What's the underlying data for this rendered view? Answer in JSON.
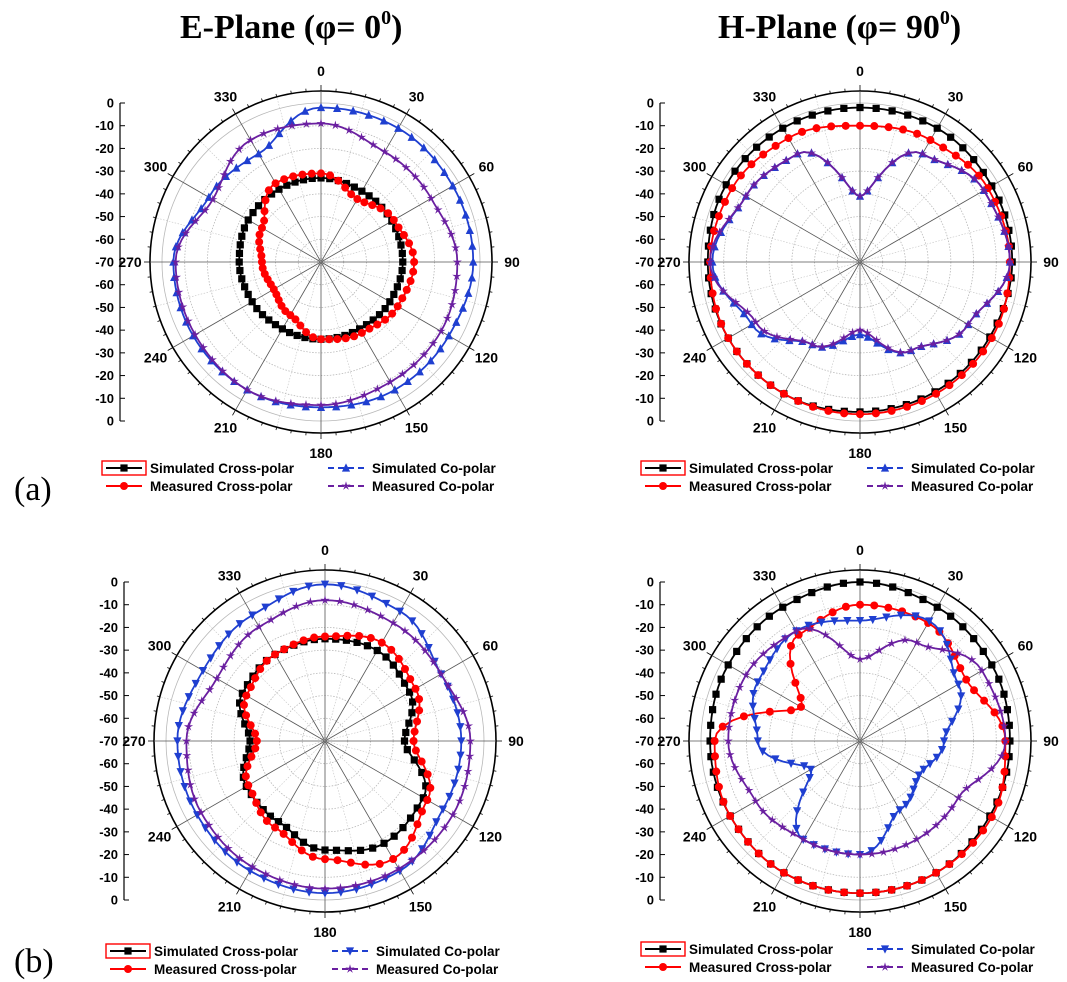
{
  "titles": {
    "e_plane": "E-Plane (φ= 0",
    "e_plane_sup": "0",
    "h_plane": "H-Plane (φ= 90",
    "h_plane_sup": "0",
    "paren": ")"
  },
  "panel_labels": {
    "a": "(a)",
    "b": "(b)"
  },
  "radial_ticks": [
    "0",
    "-10",
    "-20",
    "-30",
    "-40",
    "-50",
    "-60",
    "-70",
    "-60",
    "-50",
    "-40",
    "-30",
    "-20",
    "-10",
    "0"
  ],
  "angle_labels": [
    "0",
    "30",
    "60",
    "90",
    "120",
    "150",
    "180",
    "210",
    "240",
    "270",
    "300",
    "330"
  ],
  "legend": {
    "sim_cross": "Simulated Cross-polar",
    "meas_cross": "Measured Cross-polar",
    "sim_co": "Simulated Co-polar",
    "meas_co": "Measured Co-polar"
  },
  "colors": {
    "sim_cross": "#000000",
    "meas_cross": "#ff0000",
    "sim_co": "#1f3fd0",
    "meas_co": "#6a1fa0",
    "legend_box_border": "#ff0000"
  },
  "chart_data": [
    {
      "type": "polar",
      "panel": "(a) E-Plane",
      "r_unit": "dB",
      "rlim": [
        -70,
        0
      ],
      "angles_deg": [
        0,
        30,
        60,
        90,
        120,
        150,
        180,
        210,
        240,
        270,
        300,
        330
      ],
      "series": [
        {
          "name": "Simulated Cross-polar",
          "marker": "square",
          "values": [
            -33,
            -34,
            -34,
            -34,
            -35,
            -36,
            -36,
            -36,
            -35,
            -34,
            -33,
            -33
          ]
        },
        {
          "name": "Measured Cross-polar",
          "marker": "circle",
          "values": [
            -31,
            -38,
            -33,
            -29,
            -31,
            -34,
            -36,
            -43,
            -46,
            -44,
            -40,
            -30
          ]
        },
        {
          "name": "Simulated Co-polar",
          "marker": "triangle-up",
          "values": [
            -2,
            -2,
            -3,
            -3,
            -5,
            -5,
            -6,
            -5,
            -5,
            -5,
            -13,
            -15
          ]
        },
        {
          "name": "Measured Co-polar",
          "marker": "star",
          "values": [
            -9,
            -14,
            -14,
            -10,
            -9,
            -9,
            -7,
            -5,
            -6,
            -6,
            -15,
            -8
          ]
        }
      ]
    },
    {
      "type": "polar",
      "panel": "(a) H-Plane",
      "r_unit": "dB",
      "rlim": [
        -70,
        0
      ],
      "angles_deg": [
        0,
        30,
        60,
        90,
        120,
        150,
        180,
        210,
        240,
        270,
        300,
        330
      ],
      "series": [
        {
          "name": "Simulated Cross-polar",
          "marker": "square",
          "values": [
            -2,
            -2,
            -3,
            -3,
            -4,
            -4,
            -4,
            -3,
            -3,
            -3,
            -2,
            -2
          ]
        },
        {
          "name": "Measured Cross-polar",
          "marker": "circle",
          "values": [
            -10,
            -8,
            -5,
            -4,
            -3,
            -3,
            -3,
            -3,
            -3,
            -4,
            -5,
            -7
          ]
        },
        {
          "name": "Simulated Co-polar",
          "marker": "triangle-up",
          "values": [
            -41,
            -15,
            -7,
            -4,
            -15,
            -25,
            -38,
            -28,
            -15,
            -5,
            -12,
            -15
          ]
        },
        {
          "name": "Measured Co-polar",
          "marker": "star",
          "values": [
            -41,
            -15,
            -7,
            -4,
            -15,
            -25,
            -40,
            -28,
            -17,
            -4,
            -12,
            -15
          ]
        }
      ]
    },
    {
      "type": "polar",
      "panel": "(b) E-Plane",
      "r_unit": "dB",
      "rlim": [
        -70,
        0
      ],
      "angles_deg": [
        0,
        30,
        60,
        90,
        120,
        150,
        180,
        210,
        240,
        270,
        300,
        330
      ],
      "series": [
        {
          "name": "Simulated Cross-polar",
          "marker": "square",
          "values": [
            -25,
            -24,
            -27,
            -35,
            -20,
            -18,
            -22,
            -29,
            -30,
            -37,
            -28,
            -26
          ]
        },
        {
          "name": "Measured Cross-polar",
          "marker": "circle",
          "values": [
            -24,
            -20,
            -24,
            -31,
            -18,
            -10,
            -18,
            -26,
            -31,
            -40,
            -30,
            -26
          ]
        },
        {
          "name": "Simulated Co-polar",
          "marker": "triangle-down",
          "values": [
            -1,
            -4,
            -11,
            -10,
            -10,
            -4,
            -3,
            -4,
            -5,
            -5,
            -8,
            -6
          ]
        },
        {
          "name": "Measured Co-polar",
          "marker": "star",
          "values": [
            -8,
            -10,
            -11,
            -6,
            -5,
            -5,
            -5,
            -6,
            -7,
            -9,
            -15,
            -12
          ]
        }
      ]
    },
    {
      "type": "polar",
      "panel": "(b) H-Plane",
      "r_unit": "dB",
      "rlim": [
        -70,
        0
      ],
      "angles_deg": [
        0,
        30,
        60,
        90,
        120,
        150,
        180,
        210,
        240,
        270,
        300,
        330
      ],
      "series": [
        {
          "name": "Simulated Cross-polar",
          "marker": "square",
          "values": [
            0,
            -2,
            -3,
            -4,
            -4,
            -3,
            -3,
            -3,
            -4,
            -4,
            -3,
            -2
          ]
        },
        {
          "name": "Measured Cross-polar",
          "marker": "circle",
          "values": [
            -10,
            -10,
            -16,
            -6,
            -3,
            -3,
            -3,
            -3,
            -4,
            -6,
            -40,
            -16
          ]
        },
        {
          "name": "Simulated Co-polar",
          "marker": "triangle-down",
          "values": [
            -17,
            -9,
            -20,
            -33,
            -40,
            -35,
            -20,
            -20,
            -45,
            -25,
            -18,
            -14
          ]
        },
        {
          "name": "Measured Co-polar",
          "marker": "star",
          "values": [
            -34,
            -20,
            -8,
            -6,
            -20,
            -20,
            -20,
            -20,
            -17,
            -12,
            -12,
            -14
          ]
        }
      ]
    }
  ]
}
